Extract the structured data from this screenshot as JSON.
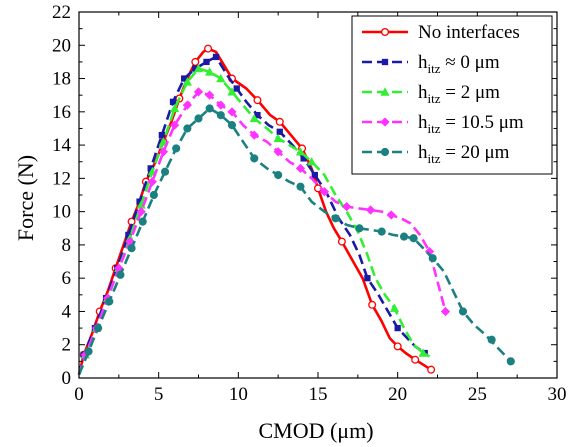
{
  "chart_data": {
    "type": "line",
    "xlabel": "CMOD (μm)",
    "ylabel": "Force (N)",
    "xlim": [
      0,
      30
    ],
    "ylim": [
      0,
      22
    ],
    "xticks": [
      0,
      5,
      10,
      15,
      20,
      25,
      30
    ],
    "yticks": [
      0,
      2,
      4,
      6,
      8,
      10,
      12,
      14,
      16,
      18,
      20,
      22
    ],
    "grid": false,
    "legend_position": "top-right",
    "series": [
      {
        "name": "No interfaces",
        "name_main": "No interfaces",
        "name_sub": "",
        "name_rest": "",
        "color": "#ff0000",
        "dash": "solid",
        "marker": "open-circle",
        "points": [
          [
            0.0,
            0.2
          ],
          [
            0.3,
            1.4
          ],
          [
            0.8,
            2.6
          ],
          [
            1.3,
            4.0
          ],
          [
            1.8,
            5.2
          ],
          [
            2.3,
            6.6
          ],
          [
            2.8,
            8.0
          ],
          [
            3.3,
            9.4
          ],
          [
            3.8,
            10.6
          ],
          [
            4.2,
            11.8
          ],
          [
            4.8,
            13.0
          ],
          [
            5.3,
            14.2
          ],
          [
            5.8,
            15.4
          ],
          [
            6.3,
            16.8
          ],
          [
            6.8,
            18.0
          ],
          [
            7.3,
            19.0
          ],
          [
            7.8,
            19.6
          ],
          [
            8.1,
            19.8
          ],
          [
            8.6,
            19.6
          ],
          [
            9.1,
            18.8
          ],
          [
            9.6,
            18.0
          ],
          [
            10.5,
            17.4
          ],
          [
            11.2,
            16.7
          ],
          [
            12.0,
            15.8
          ],
          [
            12.6,
            15.4
          ],
          [
            13.3,
            14.6
          ],
          [
            14.0,
            13.8
          ],
          [
            14.6,
            12.6
          ],
          [
            15.0,
            11.4
          ],
          [
            15.5,
            10.0
          ],
          [
            16.0,
            9.0
          ],
          [
            16.5,
            8.2
          ],
          [
            17.2,
            7.0
          ],
          [
            17.8,
            6.0
          ],
          [
            18.4,
            4.4
          ],
          [
            19.0,
            3.4
          ],
          [
            19.5,
            2.4
          ],
          [
            20.0,
            1.9
          ],
          [
            20.5,
            1.5
          ],
          [
            21.1,
            1.1
          ],
          [
            21.6,
            0.8
          ],
          [
            22.1,
            0.5
          ]
        ],
        "marker_points": [
          [
            0.3,
            1.4
          ],
          [
            1.3,
            4.0
          ],
          [
            2.3,
            6.6
          ],
          [
            3.3,
            9.4
          ],
          [
            4.2,
            11.8
          ],
          [
            5.3,
            14.2
          ],
          [
            6.3,
            16.8
          ],
          [
            7.3,
            19.0
          ],
          [
            8.1,
            19.8
          ],
          [
            9.6,
            18.0
          ],
          [
            11.2,
            16.7
          ],
          [
            12.6,
            15.4
          ],
          [
            14.0,
            13.8
          ],
          [
            15.0,
            11.4
          ],
          [
            16.5,
            8.2
          ],
          [
            18.4,
            4.4
          ],
          [
            20.0,
            1.9
          ],
          [
            21.1,
            1.1
          ],
          [
            22.1,
            0.5
          ]
        ]
      },
      {
        "name": "hitz ≈ 0 μm",
        "name_main": "h",
        "name_sub": "itz",
        "name_rest": " ≈ 0 μm",
        "color": "#1a1aa6",
        "dash": "dash",
        "marker": "square",
        "points": [
          [
            0.0,
            0.2
          ],
          [
            0.3,
            1.4
          ],
          [
            1.0,
            3.0
          ],
          [
            1.7,
            4.8
          ],
          [
            2.4,
            6.6
          ],
          [
            3.1,
            8.6
          ],
          [
            3.8,
            10.6
          ],
          [
            4.5,
            12.6
          ],
          [
            5.2,
            14.6
          ],
          [
            5.9,
            16.6
          ],
          [
            6.6,
            18.0
          ],
          [
            7.3,
            18.6
          ],
          [
            8.0,
            19.0
          ],
          [
            8.6,
            19.3
          ],
          [
            9.3,
            18.2
          ],
          [
            9.9,
            17.4
          ],
          [
            10.5,
            16.6
          ],
          [
            11.2,
            15.8
          ],
          [
            11.9,
            15.2
          ],
          [
            12.6,
            14.8
          ],
          [
            13.4,
            14.0
          ],
          [
            14.1,
            13.2
          ],
          [
            14.8,
            12.2
          ],
          [
            15.5,
            11.2
          ],
          [
            16.3,
            9.6
          ],
          [
            17.0,
            8.6
          ],
          [
            17.6,
            7.4
          ],
          [
            18.1,
            6.0
          ],
          [
            18.8,
            5.0
          ],
          [
            19.4,
            4.0
          ],
          [
            20.0,
            3.0
          ],
          [
            20.6,
            2.4
          ],
          [
            21.1,
            1.9
          ],
          [
            21.7,
            1.5
          ]
        ],
        "marker_points": [
          [
            0.3,
            1.4
          ],
          [
            1.0,
            3.0
          ],
          [
            1.7,
            4.8
          ],
          [
            2.4,
            6.6
          ],
          [
            3.1,
            8.6
          ],
          [
            3.8,
            10.6
          ],
          [
            4.5,
            12.6
          ],
          [
            5.2,
            14.6
          ],
          [
            5.9,
            16.6
          ],
          [
            6.6,
            18.0
          ],
          [
            7.3,
            18.6
          ],
          [
            8.0,
            19.0
          ],
          [
            8.6,
            19.3
          ],
          [
            9.9,
            17.4
          ],
          [
            11.2,
            15.8
          ],
          [
            12.6,
            14.8
          ],
          [
            14.1,
            13.2
          ],
          [
            14.8,
            12.2
          ],
          [
            18.1,
            6.0
          ],
          [
            20.0,
            3.0
          ],
          [
            21.7,
            1.5
          ]
        ]
      },
      {
        "name": "hitz = 2 μm",
        "name_main": "h",
        "name_sub": "itz",
        "name_rest": " = 2 μm",
        "color": "#33ee33",
        "dash": "dash",
        "marker": "triangle",
        "points": [
          [
            0.0,
            0.2
          ],
          [
            0.4,
            1.4
          ],
          [
            1.1,
            3.0
          ],
          [
            1.8,
            4.8
          ],
          [
            2.5,
            6.6
          ],
          [
            3.2,
            8.4
          ],
          [
            3.9,
            10.4
          ],
          [
            4.6,
            12.4
          ],
          [
            5.3,
            14.2
          ],
          [
            6.0,
            16.2
          ],
          [
            6.8,
            17.8
          ],
          [
            7.5,
            18.6
          ],
          [
            8.2,
            18.4
          ],
          [
            8.9,
            18.0
          ],
          [
            9.6,
            17.2
          ],
          [
            10.3,
            16.4
          ],
          [
            11.0,
            15.6
          ],
          [
            11.8,
            15.0
          ],
          [
            12.5,
            14.4
          ],
          [
            13.2,
            14.0
          ],
          [
            13.9,
            13.6
          ],
          [
            14.6,
            13.0
          ],
          [
            15.4,
            12.2
          ],
          [
            16.1,
            11.0
          ],
          [
            16.8,
            10.0
          ],
          [
            17.5,
            8.8
          ],
          [
            18.1,
            7.4
          ],
          [
            18.6,
            6.0
          ],
          [
            19.2,
            5.0
          ],
          [
            19.8,
            4.2
          ],
          [
            20.4,
            3.0
          ],
          [
            21.0,
            2.0
          ],
          [
            21.6,
            1.5
          ],
          [
            22.0,
            1.3
          ]
        ],
        "marker_points": [
          [
            0.4,
            1.4
          ],
          [
            1.1,
            3.0
          ],
          [
            1.8,
            4.8
          ],
          [
            2.5,
            6.6
          ],
          [
            3.2,
            8.4
          ],
          [
            3.9,
            10.4
          ],
          [
            4.6,
            12.4
          ],
          [
            5.3,
            14.2
          ],
          [
            6.0,
            16.2
          ],
          [
            6.8,
            17.8
          ],
          [
            7.5,
            18.6
          ],
          [
            8.2,
            18.4
          ],
          [
            8.9,
            18.0
          ],
          [
            9.6,
            17.2
          ],
          [
            11.0,
            15.6
          ],
          [
            12.5,
            14.4
          ],
          [
            13.9,
            13.6
          ],
          [
            14.6,
            13.0
          ],
          [
            19.8,
            4.2
          ],
          [
            21.6,
            1.5
          ]
        ]
      },
      {
        "name": "hitz = 10.5 μm",
        "name_main": "h",
        "name_sub": "itz",
        "name_rest": " = 10.5 μm",
        "color": "#ff33ff",
        "dash": "dash",
        "marker": "diamond",
        "points": [
          [
            0.0,
            0.2
          ],
          [
            0.4,
            1.4
          ],
          [
            1.1,
            3.0
          ],
          [
            1.8,
            4.8
          ],
          [
            2.5,
            6.6
          ],
          [
            3.2,
            8.2
          ],
          [
            3.9,
            10.0
          ],
          [
            4.6,
            11.8
          ],
          [
            5.3,
            13.6
          ],
          [
            6.0,
            15.2
          ],
          [
            6.8,
            16.4
          ],
          [
            7.5,
            17.2
          ],
          [
            8.2,
            17.0
          ],
          [
            8.9,
            16.4
          ],
          [
            9.6,
            16.0
          ],
          [
            10.3,
            15.2
          ],
          [
            11.0,
            14.6
          ],
          [
            11.8,
            14.2
          ],
          [
            12.5,
            13.6
          ],
          [
            13.2,
            13.0
          ],
          [
            13.9,
            12.6
          ],
          [
            14.6,
            12.0
          ],
          [
            15.4,
            11.2
          ],
          [
            16.1,
            10.6
          ],
          [
            16.8,
            10.3
          ],
          [
            17.5,
            10.2
          ],
          [
            18.3,
            10.1
          ],
          [
            19.0,
            10.0
          ],
          [
            19.6,
            9.8
          ],
          [
            20.2,
            9.6
          ],
          [
            20.8,
            9.3
          ],
          [
            21.4,
            8.6
          ],
          [
            22.0,
            7.6
          ],
          [
            22.5,
            5.8
          ],
          [
            23.0,
            4.0
          ]
        ],
        "marker_points": [
          [
            0.4,
            1.4
          ],
          [
            1.1,
            3.0
          ],
          [
            1.8,
            4.8
          ],
          [
            2.5,
            6.6
          ],
          [
            3.2,
            8.2
          ],
          [
            3.9,
            10.0
          ],
          [
            4.6,
            11.8
          ],
          [
            5.3,
            13.6
          ],
          [
            6.0,
            15.2
          ],
          [
            6.8,
            16.4
          ],
          [
            7.5,
            17.2
          ],
          [
            8.2,
            17.0
          ],
          [
            8.9,
            16.4
          ],
          [
            9.6,
            16.0
          ],
          [
            11.0,
            14.6
          ],
          [
            12.5,
            13.6
          ],
          [
            13.9,
            12.6
          ],
          [
            15.4,
            11.2
          ],
          [
            16.8,
            10.3
          ],
          [
            18.3,
            10.1
          ],
          [
            19.6,
            9.8
          ],
          [
            22.0,
            7.6
          ],
          [
            23.0,
            4.0
          ]
        ]
      },
      {
        "name": "hitz = 20 μm",
        "name_main": "h",
        "name_sub": "itz",
        "name_rest": " = 20 μm",
        "color": "#1a8080",
        "dash": "dash",
        "marker": "circle",
        "points": [
          [
            0.0,
            0.2
          ],
          [
            0.6,
            1.6
          ],
          [
            1.2,
            3.0
          ],
          [
            1.9,
            4.6
          ],
          [
            2.6,
            6.2
          ],
          [
            3.3,
            7.8
          ],
          [
            4.0,
            9.4
          ],
          [
            4.7,
            11.0
          ],
          [
            5.4,
            12.4
          ],
          [
            6.1,
            13.8
          ],
          [
            6.8,
            15.0
          ],
          [
            7.5,
            15.6
          ],
          [
            8.2,
            16.2
          ],
          [
            8.9,
            15.8
          ],
          [
            9.6,
            15.2
          ],
          [
            10.3,
            14.2
          ],
          [
            11.0,
            13.2
          ],
          [
            11.8,
            12.6
          ],
          [
            12.5,
            12.2
          ],
          [
            13.2,
            11.8
          ],
          [
            13.9,
            11.5
          ],
          [
            14.6,
            10.6
          ],
          [
            15.4,
            10.0
          ],
          [
            16.1,
            9.6
          ],
          [
            16.8,
            9.2
          ],
          [
            17.6,
            9.0
          ],
          [
            18.3,
            8.9
          ],
          [
            19.0,
            8.8
          ],
          [
            19.7,
            8.6
          ],
          [
            20.4,
            8.5
          ],
          [
            21.0,
            8.4
          ],
          [
            21.6,
            7.8
          ],
          [
            22.2,
            7.2
          ],
          [
            22.9,
            6.4
          ],
          [
            23.5,
            5.2
          ],
          [
            24.1,
            4.0
          ],
          [
            24.8,
            3.2
          ],
          [
            25.5,
            2.6
          ],
          [
            26.3,
            1.8
          ],
          [
            27.1,
            1.0
          ]
        ],
        "marker_points": [
          [
            0.6,
            1.6
          ],
          [
            1.2,
            3.0
          ],
          [
            1.9,
            4.6
          ],
          [
            2.6,
            6.2
          ],
          [
            3.3,
            7.8
          ],
          [
            4.0,
            9.4
          ],
          [
            4.7,
            11.0
          ],
          [
            5.4,
            12.4
          ],
          [
            6.1,
            13.8
          ],
          [
            6.8,
            15.0
          ],
          [
            7.5,
            15.6
          ],
          [
            8.2,
            16.2
          ],
          [
            8.9,
            15.8
          ],
          [
            9.6,
            15.2
          ],
          [
            11.0,
            13.2
          ],
          [
            12.5,
            12.2
          ],
          [
            13.9,
            11.5
          ],
          [
            16.1,
            9.6
          ],
          [
            17.6,
            9.0
          ],
          [
            19.0,
            8.8
          ],
          [
            20.4,
            8.5
          ],
          [
            21.0,
            8.4
          ],
          [
            22.2,
            7.2
          ],
          [
            24.1,
            4.0
          ],
          [
            25.9,
            2.3
          ],
          [
            27.1,
            1.0
          ]
        ]
      }
    ]
  }
}
